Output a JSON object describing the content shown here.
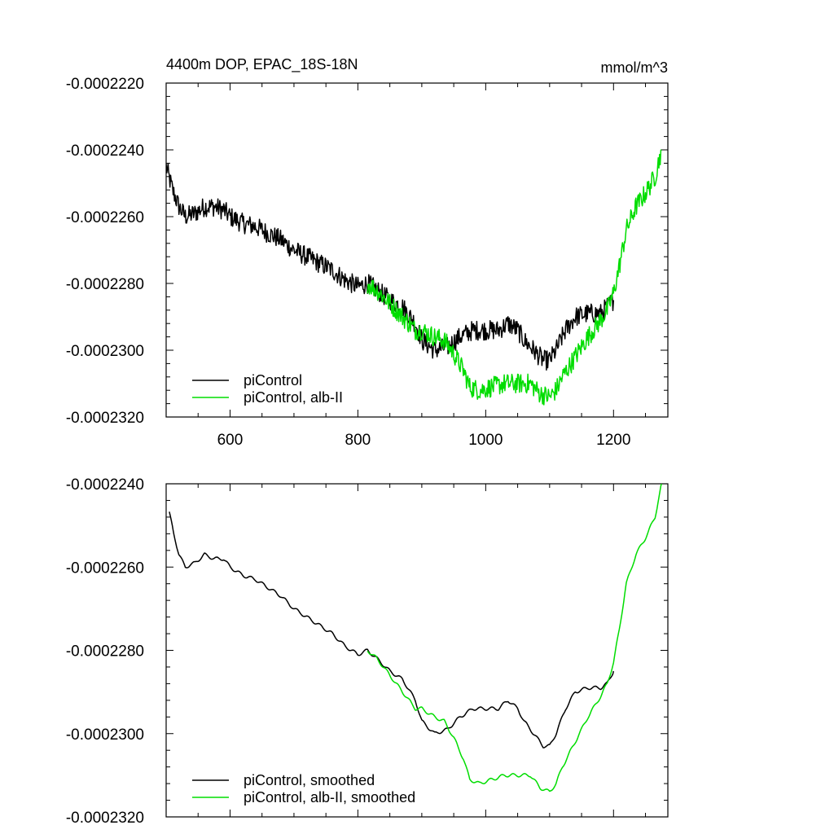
{
  "chart_data": [
    {
      "type": "line",
      "title": "4400m DOP, EPAC_18S-18N",
      "units": "mmol/m^3",
      "xlim": [
        500,
        1285
      ],
      "ylim": [
        -0.000232,
        -0.000222
      ],
      "xticks": [
        600,
        800,
        1000,
        1200
      ],
      "xtick_labels": [
        "600",
        "800",
        "1000",
        "1200"
      ],
      "yticks": [
        -0.000222,
        -0.000224,
        -0.000226,
        -0.000228,
        -0.00023,
        -0.000232
      ],
      "ytick_labels": [
        "-0.0002220",
        "-0.0002240",
        "-0.0002260",
        "-0.0002280",
        "-0.0002300",
        "-0.0002320"
      ],
      "legend_position": "bottom-left",
      "noise": true,
      "series": [
        {
          "name": "piControl",
          "color": "#000000",
          "x": [
            500,
            510,
            520,
            530,
            545,
            560,
            575,
            590,
            600,
            620,
            640,
            660,
            680,
            700,
            720,
            740,
            760,
            780,
            800,
            815,
            830,
            850,
            870,
            890,
            900,
            920,
            940,
            960,
            980,
            1000,
            1020,
            1035,
            1050,
            1060,
            1075,
            1090,
            1100,
            1110,
            1125,
            1140,
            1160,
            1180,
            1190,
            1200
          ],
          "y": [
            -0.0002245,
            -0.0002252,
            -0.0002257,
            -0.000226,
            -0.0002259,
            -0.0002257,
            -0.0002257,
            -0.0002258,
            -0.000226,
            -0.0002262,
            -0.0002263,
            -0.0002265,
            -0.0002267,
            -0.000227,
            -0.0002272,
            -0.0002274,
            -0.0002276,
            -0.0002279,
            -0.0002281,
            -0.000228,
            -0.0002282,
            -0.0002285,
            -0.0002287,
            -0.0002292,
            -0.0002297,
            -0.00023,
            -0.0002299,
            -0.0002296,
            -0.0002294,
            -0.0002294,
            -0.0002294,
            -0.0002292,
            -0.0002294,
            -0.0002297,
            -0.00023,
            -0.0002303,
            -0.0002303,
            -0.00023,
            -0.0002294,
            -0.000229,
            -0.0002289,
            -0.0002289,
            -0.0002287,
            -0.0002285
          ]
        },
        {
          "name": "piControl, alb-II",
          "color": "#00dd00",
          "x": [
            815,
            830,
            850,
            870,
            890,
            900,
            920,
            935,
            950,
            965,
            975,
            990,
            1010,
            1030,
            1050,
            1070,
            1085,
            1100,
            1110,
            1120,
            1140,
            1160,
            1180,
            1190,
            1200,
            1210,
            1220,
            1235,
            1250,
            1265,
            1275
          ],
          "y": [
            -0.000228,
            -0.0002282,
            -0.0002286,
            -0.000229,
            -0.0002294,
            -0.0002294,
            -0.0002296,
            -0.0002297,
            -0.0002301,
            -0.0002306,
            -0.0002311,
            -0.0002312,
            -0.0002311,
            -0.000231,
            -0.000231,
            -0.000231,
            -0.0002313,
            -0.0002314,
            -0.0002312,
            -0.0002308,
            -0.0002302,
            -0.0002296,
            -0.0002291,
            -0.0002288,
            -0.0002283,
            -0.0002274,
            -0.0002264,
            -0.0002257,
            -0.0002253,
            -0.0002248,
            -0.000224
          ]
        }
      ]
    },
    {
      "type": "line",
      "title": "",
      "units": "",
      "xlim": [
        500,
        1285
      ],
      "ylim": [
        -0.000232,
        -0.000224
      ],
      "xticks": [
        600,
        800,
        1000,
        1200
      ],
      "xtick_labels": [],
      "yticks": [
        -0.000224,
        -0.000226,
        -0.000228,
        -0.00023,
        -0.000232
      ],
      "ytick_labels": [
        "-0.0002240",
        "-0.0002260",
        "-0.0002280",
        "-0.0002300",
        "-0.0002320"
      ],
      "legend_position": "bottom-left",
      "noise": false,
      "series": [
        {
          "name": "piControl, smoothed",
          "color": "#000000",
          "x": [
            505,
            512,
            520,
            530,
            545,
            560,
            575,
            590,
            600,
            620,
            640,
            660,
            680,
            700,
            720,
            740,
            760,
            780,
            800,
            815,
            830,
            850,
            870,
            890,
            900,
            920,
            940,
            960,
            980,
            1000,
            1020,
            1035,
            1050,
            1060,
            1075,
            1090,
            1100,
            1110,
            1125,
            1140,
            1160,
            1180,
            1190,
            1200
          ],
          "y": [
            -0.0002247,
            -0.0002252,
            -0.0002257,
            -0.000226,
            -0.0002259,
            -0.0002257,
            -0.0002258,
            -0.0002258,
            -0.000226,
            -0.0002262,
            -0.0002263,
            -0.0002265,
            -0.0002267,
            -0.000227,
            -0.0002272,
            -0.0002274,
            -0.0002276,
            -0.0002279,
            -0.0002281,
            -0.000228,
            -0.0002282,
            -0.0002285,
            -0.0002287,
            -0.0002292,
            -0.0002297,
            -0.00023,
            -0.0002299,
            -0.0002296,
            -0.0002294,
            -0.0002294,
            -0.0002294,
            -0.0002292,
            -0.0002294,
            -0.0002297,
            -0.00023,
            -0.0002303,
            -0.0002303,
            -0.00023,
            -0.0002294,
            -0.000229,
            -0.0002289,
            -0.0002289,
            -0.0002288,
            -0.0002285
          ]
        },
        {
          "name": "piControl, alb-II, smoothed",
          "color": "#00dd00",
          "x": [
            815,
            830,
            850,
            870,
            890,
            900,
            920,
            935,
            950,
            965,
            975,
            990,
            1010,
            1030,
            1050,
            1070,
            1085,
            1100,
            1110,
            1120,
            1140,
            1160,
            1180,
            1190,
            1200,
            1210,
            1220,
            1235,
            1250,
            1265,
            1275
          ],
          "y": [
            -0.000228,
            -0.0002282,
            -0.0002286,
            -0.000229,
            -0.0002294,
            -0.0002294,
            -0.0002296,
            -0.0002297,
            -0.0002301,
            -0.0002306,
            -0.0002311,
            -0.0002312,
            -0.0002311,
            -0.000231,
            -0.000231,
            -0.000231,
            -0.0002313,
            -0.0002314,
            -0.0002312,
            -0.0002308,
            -0.0002302,
            -0.0002296,
            -0.0002291,
            -0.0002288,
            -0.0002283,
            -0.0002274,
            -0.0002264,
            -0.0002257,
            -0.0002253,
            -0.0002248,
            -0.000224
          ]
        }
      ]
    }
  ]
}
